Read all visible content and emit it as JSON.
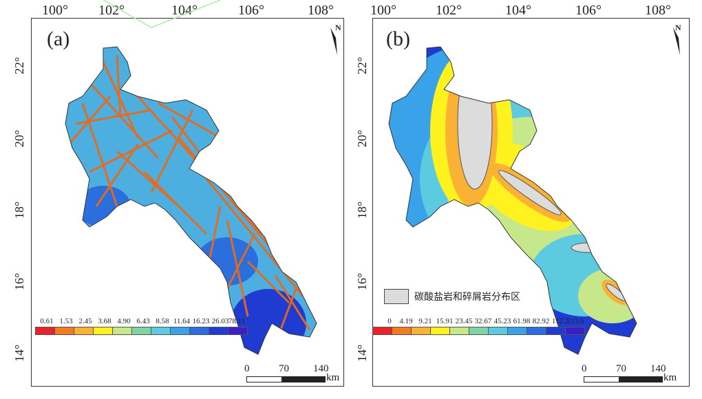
{
  "top_labels": [
    "100°",
    "102°",
    "104°",
    "106°",
    "108°"
  ],
  "side_labels": [
    "22°",
    "20°",
    "18°",
    "16°",
    "14°"
  ],
  "panel_a": {
    "label": "(a)",
    "north": "N",
    "legend_values": [
      "0.61",
      "1.53",
      "2.45",
      "3.68",
      "4.90",
      "6.43",
      "8.58",
      "11.64",
      "16.23",
      "26.03",
      "78.11"
    ],
    "colors": [
      "#e8232a",
      "#f47a20",
      "#f9b233",
      "#fff21e",
      "#c6e88a",
      "#7fd3a5",
      "#5ccbe0",
      "#3aa2e8",
      "#2a6fdd",
      "#1f3bd1",
      "#3a1fc9"
    ],
    "scale": {
      "labels": [
        "0",
        "70",
        "140"
      ],
      "unit": "km"
    }
  },
  "panel_b": {
    "label": "(b)",
    "north": "N",
    "legend_values": [
      "0",
      "4.19",
      "9.21",
      "15.91",
      "23.45",
      "32.67",
      "45.23",
      "61.98",
      "82.92",
      "112.2",
      "213.6"
    ],
    "colors": [
      "#e8232a",
      "#f47a20",
      "#f9b233",
      "#fff21e",
      "#c6e88a",
      "#7fd3a5",
      "#5ccbe0",
      "#3aa2e8",
      "#2a6fdd",
      "#1f3bd1",
      "#3a1fc9"
    ],
    "rock_legend": "碳酸盐岩和碎屑岩分布区",
    "scale": {
      "labels": [
        "0",
        "70",
        "140"
      ],
      "unit": "km"
    }
  }
}
